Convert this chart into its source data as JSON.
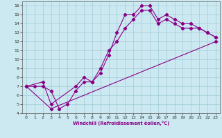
{
  "xlabel": "Windchill (Refroidissement éolien,°C)",
  "bg_color": "#cce8f0",
  "grid_color": "#a0ccd8",
  "line_color": "#880088",
  "xlim": [
    -0.5,
    23.5
  ],
  "ylim": [
    4,
    16.5
  ],
  "xticks": [
    0,
    1,
    2,
    3,
    4,
    5,
    6,
    7,
    8,
    9,
    10,
    11,
    12,
    13,
    14,
    15,
    16,
    17,
    18,
    19,
    20,
    21,
    22,
    23
  ],
  "yticks": [
    4,
    5,
    6,
    7,
    8,
    9,
    10,
    11,
    12,
    13,
    14,
    15,
    16
  ],
  "line1_x": [
    0,
    1,
    2,
    3,
    4,
    5,
    6,
    7,
    8,
    9,
    10,
    11,
    12,
    13,
    14,
    15,
    16,
    17,
    18,
    19,
    20,
    21,
    22,
    23
  ],
  "line1_y": [
    7,
    7,
    7,
    6.5,
    4.5,
    5.0,
    6.5,
    7.5,
    7.5,
    8.5,
    10.5,
    13.0,
    15.0,
    15.0,
    16.0,
    16.0,
    14.5,
    15.0,
    14.5,
    14.0,
    14.0,
    13.5,
    13.0,
    12.5
  ],
  "line2_x": [
    0,
    2,
    3,
    6,
    7,
    8,
    9,
    10,
    11,
    12,
    13,
    14,
    15,
    16,
    17,
    18,
    19,
    20,
    21,
    22,
    23
  ],
  "line2_y": [
    7,
    7.5,
    5.0,
    7.0,
    8.0,
    7.5,
    9.0,
    11.0,
    12.0,
    13.5,
    14.5,
    15.5,
    15.5,
    14.0,
    14.5,
    14.0,
    13.5,
    13.5,
    13.5,
    13.0,
    12.5
  ],
  "line3_x": [
    0,
    3,
    23
  ],
  "line3_y": [
    7,
    4.5,
    12.0
  ]
}
